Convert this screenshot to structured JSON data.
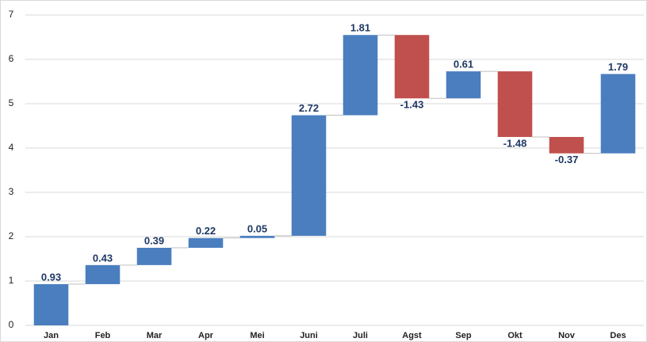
{
  "chart_data": {
    "type": "waterfall",
    "categories": [
      "Jan",
      "Feb",
      "Mar",
      "Apr",
      "Mei",
      "Juni",
      "Juli",
      "Agst",
      "Sep",
      "Okt",
      "Nov",
      "Des"
    ],
    "values": [
      0.93,
      0.43,
      0.39,
      0.22,
      0.05,
      2.72,
      1.81,
      -1.43,
      0.61,
      -1.48,
      -0.37,
      1.79
    ],
    "positive_color": "#4a7ebf",
    "negative_color": "#c0504d",
    "ylim": [
      0,
      7
    ],
    "yticks": [
      0,
      1,
      2,
      3,
      4,
      5,
      6,
      7
    ],
    "grid": true
  }
}
